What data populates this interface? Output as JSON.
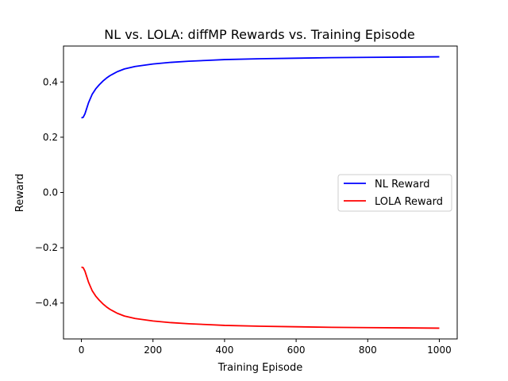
{
  "chart_data": {
    "type": "line",
    "title": "NL vs. LOLA: diffMP Rewards vs. Training Episode",
    "xlabel": "Training Episode",
    "ylabel": "Reward",
    "xlim": [
      -50,
      1050
    ],
    "ylim": [
      -0.53,
      0.53
    ],
    "xticks": [
      0,
      200,
      400,
      600,
      800,
      1000
    ],
    "yticks": [
      -0.4,
      -0.2,
      0.0,
      0.2,
      0.4
    ],
    "xtick_labels": [
      "0",
      "200",
      "400",
      "600",
      "800",
      "1000"
    ],
    "ytick_labels": [
      "−0.4",
      "−0.2",
      "0.0",
      "0.2",
      "0.4"
    ],
    "grid": false,
    "legend_position": "center-right",
    "series": [
      {
        "name": "NL Reward",
        "color": "#0000ff",
        "x": [
          0,
          5,
          10,
          15,
          20,
          30,
          40,
          50,
          60,
          70,
          80,
          90,
          100,
          120,
          150,
          200,
          250,
          300,
          350,
          400,
          500,
          600,
          700,
          800,
          900,
          1000
        ],
        "y": [
          0.27,
          0.272,
          0.285,
          0.305,
          0.325,
          0.355,
          0.375,
          0.39,
          0.403,
          0.414,
          0.423,
          0.43,
          0.437,
          0.447,
          0.456,
          0.465,
          0.471,
          0.475,
          0.478,
          0.481,
          0.484,
          0.486,
          0.488,
          0.489,
          0.49,
          0.491
        ]
      },
      {
        "name": "LOLA Reward",
        "color": "#ff0000",
        "x": [
          0,
          5,
          10,
          15,
          20,
          30,
          40,
          50,
          60,
          70,
          80,
          90,
          100,
          120,
          150,
          200,
          250,
          300,
          350,
          400,
          500,
          600,
          700,
          800,
          900,
          1000
        ],
        "y": [
          -0.27,
          -0.272,
          -0.285,
          -0.305,
          -0.325,
          -0.355,
          -0.375,
          -0.39,
          -0.403,
          -0.414,
          -0.423,
          -0.43,
          -0.437,
          -0.447,
          -0.456,
          -0.465,
          -0.471,
          -0.475,
          -0.478,
          -0.481,
          -0.484,
          -0.486,
          -0.488,
          -0.489,
          -0.49,
          -0.491
        ]
      }
    ]
  }
}
